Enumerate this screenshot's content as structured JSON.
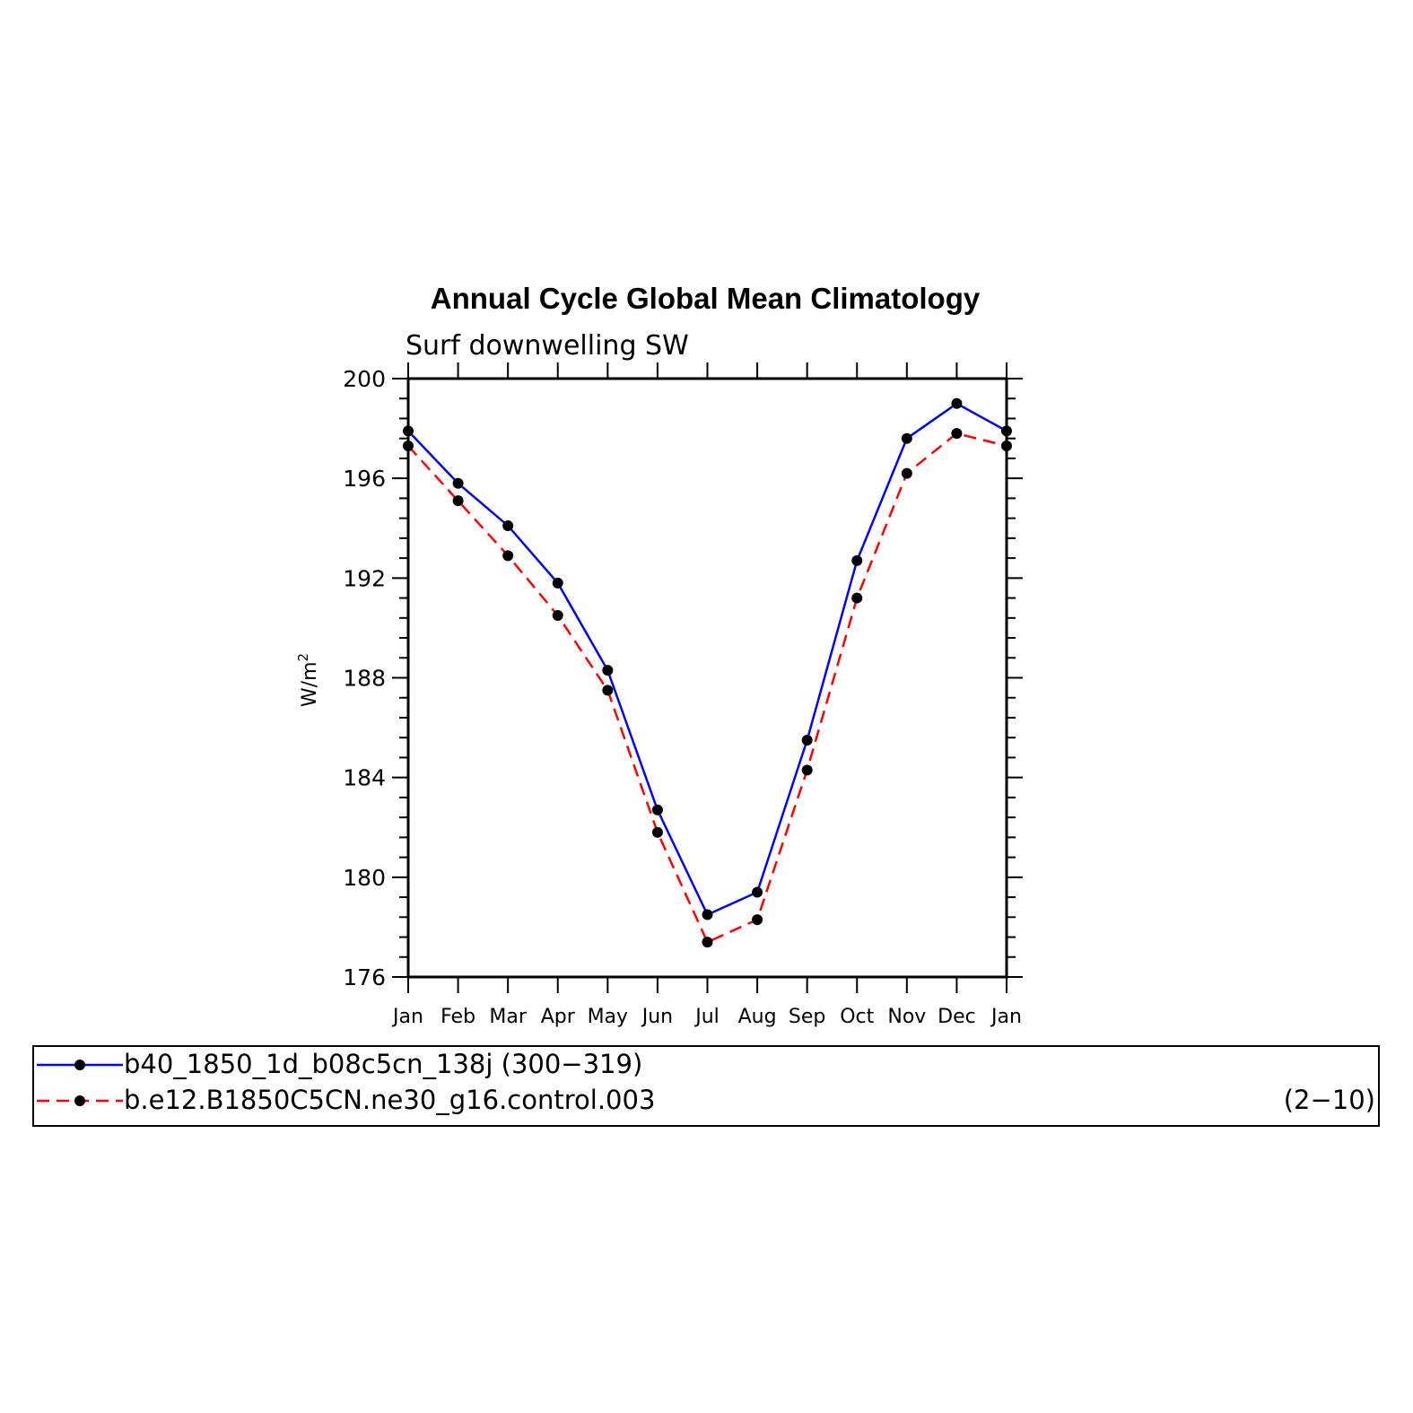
{
  "chart_data": {
    "type": "line",
    "title": "Annual Cycle Global Mean Climatology",
    "subtitle": "Surf downwelling SW",
    "ylabel": "W/m",
    "ylabel_superscript": "2",
    "categories": [
      "Jan",
      "Feb",
      "Mar",
      "Apr",
      "May",
      "Jun",
      "Jul",
      "Aug",
      "Sep",
      "Oct",
      "Nov",
      "Dec",
      "Jan"
    ],
    "ylim": [
      176,
      200
    ],
    "yticks": [
      "176",
      "180",
      "184",
      "188",
      "192",
      "196",
      "200"
    ],
    "grid": false,
    "series": [
      {
        "name": "b40_1850_1d_b08c5cn_138j (300-319)",
        "legend_text": "b40_1850_1d_b08c5cn_138j (300−319)",
        "legend_extra": "",
        "color": "#0000ff",
        "dash": "solid",
        "values": [
          197.9,
          195.8,
          194.1,
          191.8,
          188.3,
          182.7,
          178.5,
          179.4,
          185.5,
          192.7,
          197.6,
          199.0,
          197.9
        ]
      },
      {
        "name": "b.e12.B1850C5CN.ne30_g16.control.003 (2-10)",
        "legend_text": "b.e12.B1850C5CN.ne30_g16.control.003",
        "legend_extra": "(2−10)",
        "color": "#ff0000",
        "dash": "dashed",
        "values": [
          197.3,
          195.1,
          192.9,
          190.5,
          187.5,
          181.8,
          177.4,
          178.3,
          184.3,
          191.2,
          196.2,
          197.8,
          197.3
        ]
      }
    ],
    "marker_color": "#000000",
    "legend_position": "bottom"
  }
}
